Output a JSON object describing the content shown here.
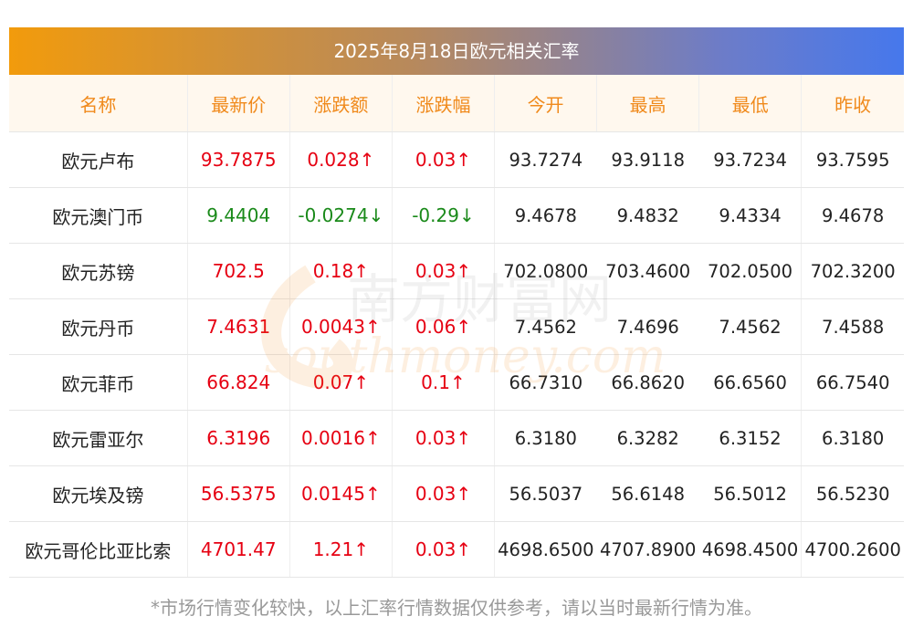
{
  "title": "2025年8月18日欧元相关汇率",
  "headers": [
    "名称",
    "最新价",
    "涨跌额",
    "涨跌幅",
    "今开",
    "最高",
    "最低",
    "昨收"
  ],
  "rows": [
    {
      "name": "欧元卢布",
      "latest": "93.7875",
      "change": "0.028↑",
      "change_pct": "0.03↑",
      "open": "93.7274",
      "high": "93.9118",
      "low": "93.7234",
      "prev_close": "93.7595",
      "trend": "up"
    },
    {
      "name": "欧元澳门币",
      "latest": "9.4404",
      "change": "-0.0274↓",
      "change_pct": "-0.29↓",
      "open": "9.4678",
      "high": "9.4832",
      "low": "9.4334",
      "prev_close": "9.4678",
      "trend": "down"
    },
    {
      "name": "欧元苏镑",
      "latest": "702.5",
      "change": "0.18↑",
      "change_pct": "0.03↑",
      "open": "702.0800",
      "high": "703.4600",
      "low": "702.0500",
      "prev_close": "702.3200",
      "trend": "up"
    },
    {
      "name": "欧元丹币",
      "latest": "7.4631",
      "change": "0.0043↑",
      "change_pct": "0.06↑",
      "open": "7.4562",
      "high": "7.4696",
      "low": "7.4562",
      "prev_close": "7.4588",
      "trend": "up"
    },
    {
      "name": "欧元菲币",
      "latest": "66.824",
      "change": "0.07↑",
      "change_pct": "0.1↑",
      "open": "66.7310",
      "high": "66.8620",
      "low": "66.6560",
      "prev_close": "66.7540",
      "trend": "up"
    },
    {
      "name": "欧元雷亚尔",
      "latest": "6.3196",
      "change": "0.0016↑",
      "change_pct": "0.03↑",
      "open": "6.3180",
      "high": "6.3282",
      "low": "6.3152",
      "prev_close": "6.3180",
      "trend": "up"
    },
    {
      "name": "欧元埃及镑",
      "latest": "56.5375",
      "change": "0.0145↑",
      "change_pct": "0.03↑",
      "open": "56.5037",
      "high": "56.6148",
      "low": "56.5012",
      "prev_close": "56.5230",
      "trend": "up"
    },
    {
      "name": "欧元哥伦比亚比索",
      "latest": "4701.47",
      "change": "1.21↑",
      "change_pct": "0.03↑",
      "open": "4698.6500",
      "high": "4707.8900",
      "low": "4698.4500",
      "prev_close": "4700.2600",
      "trend": "up"
    }
  ],
  "watermark": {
    "cn": "南方财富网",
    "en": "southmoney.com"
  },
  "footnote": "*市场行情变化较快，以上汇率行情数据仅供参考，请以当时最新行情为准。",
  "colors": {
    "up": "#e60012",
    "down": "#1a8a1a",
    "header_text": "#f08a1c",
    "header_bg": "#fff8ee",
    "title_gradient_start": "#f29b0c",
    "title_gradient_end": "#4678ec"
  }
}
